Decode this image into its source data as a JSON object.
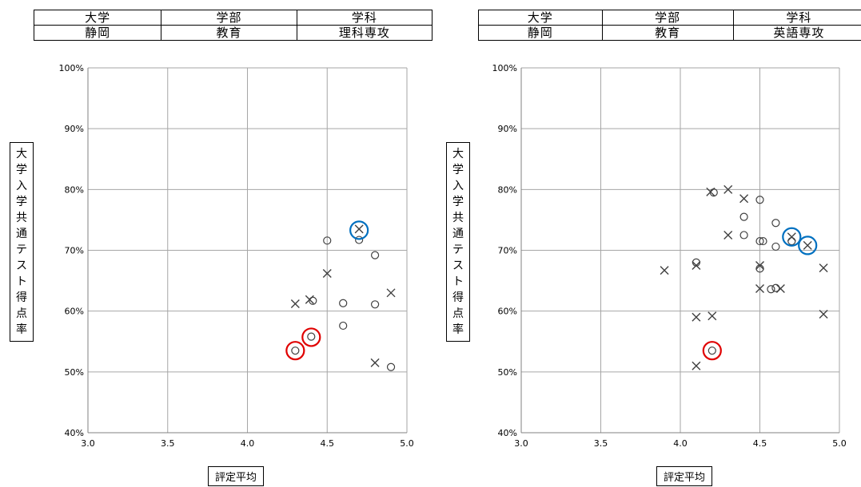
{
  "panels": [
    {
      "header": {
        "columns": [
          "大学",
          "学部",
          "学科"
        ],
        "values": [
          "静岡",
          "教育",
          "理科専攻"
        ]
      },
      "chart_data": {
        "type": "scatter",
        "xlabel": "評定平均",
        "ylabel": "大学入学共通テスト得点率",
        "xlim": [
          3.0,
          5.0
        ],
        "ylim": [
          0.4,
          1.0
        ],
        "x_ticks": [
          "3.0",
          "3.5",
          "4.0",
          "4.5",
          "5.0"
        ],
        "y_ticks": [
          "40%",
          "50%",
          "60%",
          "70%",
          "80%",
          "90%",
          "100%"
        ],
        "grid": true,
        "series": [
          {
            "marker": "circle",
            "points": [
              [
                4.5,
                0.716
              ],
              [
                4.7,
                0.717
              ],
              [
                4.8,
                0.692
              ],
              [
                4.41,
                0.617
              ],
              [
                4.6,
                0.613
              ],
              [
                4.8,
                0.611
              ],
              [
                4.6,
                0.576
              ],
              [
                4.4,
                0.558
              ],
              [
                4.3,
                0.535
              ],
              [
                4.9,
                0.508
              ]
            ]
          },
          {
            "marker": "cross",
            "points": [
              [
                4.7,
                0.735
              ],
              [
                4.5,
                0.662
              ],
              [
                4.3,
                0.612
              ],
              [
                4.39,
                0.619
              ],
              [
                4.9,
                0.63
              ],
              [
                4.8,
                0.515
              ]
            ]
          }
        ],
        "highlights": [
          {
            "color": "#0070c0",
            "x": 4.7,
            "y": 0.733
          },
          {
            "color": "#e00000",
            "x": 4.4,
            "y": 0.557
          },
          {
            "color": "#e00000",
            "x": 4.3,
            "y": 0.535
          }
        ]
      }
    },
    {
      "header": {
        "columns": [
          "大学",
          "学部",
          "学科"
        ],
        "values": [
          "静岡",
          "教育",
          "英語専攻"
        ]
      },
      "chart_data": {
        "type": "scatter",
        "xlabel": "評定平均",
        "ylabel": "大学入学共通テスト得点率",
        "xlim": [
          3.0,
          5.0
        ],
        "ylim": [
          0.4,
          1.0
        ],
        "x_ticks": [
          "3.0",
          "3.5",
          "4.0",
          "4.5",
          "5.0"
        ],
        "y_ticks": [
          "40%",
          "50%",
          "60%",
          "70%",
          "80%",
          "90%",
          "100%"
        ],
        "grid": true,
        "series": [
          {
            "marker": "circle",
            "points": [
              [
                4.21,
                0.795
              ],
              [
                4.5,
                0.783
              ],
              [
                4.4,
                0.755
              ],
              [
                4.6,
                0.745
              ],
              [
                4.4,
                0.725
              ],
              [
                4.5,
                0.715
              ],
              [
                4.52,
                0.715
              ],
              [
                4.7,
                0.715
              ],
              [
                4.6,
                0.706
              ],
              [
                4.1,
                0.68
              ],
              [
                4.5,
                0.67
              ],
              [
                4.6,
                0.638
              ],
              [
                4.57,
                0.636
              ],
              [
                4.2,
                0.535
              ]
            ]
          },
          {
            "marker": "cross",
            "points": [
              [
                4.19,
                0.796
              ],
              [
                4.3,
                0.8
              ],
              [
                4.4,
                0.785
              ],
              [
                4.3,
                0.725
              ],
              [
                4.7,
                0.722
              ],
              [
                4.8,
                0.708
              ],
              [
                4.5,
                0.675
              ],
              [
                4.1,
                0.675
              ],
              [
                3.9,
                0.667
              ],
              [
                4.9,
                0.671
              ],
              [
                4.5,
                0.637
              ],
              [
                4.63,
                0.637
              ],
              [
                4.1,
                0.59
              ],
              [
                4.2,
                0.592
              ],
              [
                4.9,
                0.595
              ],
              [
                4.1,
                0.51
              ]
            ]
          }
        ],
        "highlights": [
          {
            "color": "#0070c0",
            "x": 4.7,
            "y": 0.722
          },
          {
            "color": "#0070c0",
            "x": 4.8,
            "y": 0.708
          },
          {
            "color": "#e00000",
            "x": 4.2,
            "y": 0.535
          }
        ]
      }
    }
  ]
}
